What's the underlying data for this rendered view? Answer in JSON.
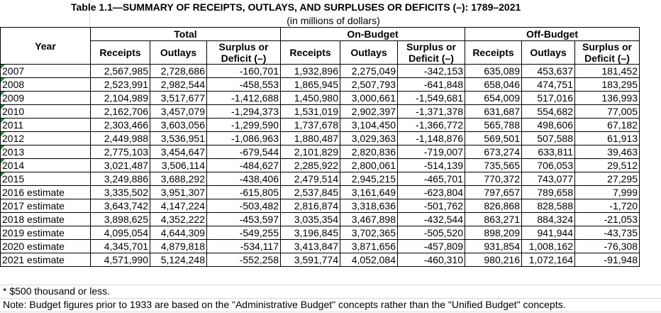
{
  "title": "Table 1.1—SUMMARY OF RECEIPTS, OUTLAYS, AND SURPLUSES OR DEFICITS (–): 1789–2021",
  "subtitle": "(in millions of dollars)",
  "headers": {
    "year": "Year",
    "total": "Total",
    "on_budget": "On-Budget",
    "off_budget": "Off-Budget",
    "receipts": "Receipts",
    "outlays": "Outlays",
    "surplus": "Surplus or Deficit (–)"
  },
  "rows": [
    {
      "year": "2007",
      "flag": true,
      "t_rec": "2,567,985",
      "t_out": "2,728,686",
      "t_sur": "-160,701",
      "on_rec": "1,932,896",
      "on_out": "2,275,049",
      "on_sur": "-342,153",
      "off_rec": "635,089",
      "off_out": "453,637",
      "off_sur": "181,452"
    },
    {
      "year": "2008",
      "flag": true,
      "t_rec": "2,523,991",
      "t_out": "2,982,544",
      "t_sur": "-458,553",
      "on_rec": "1,865,945",
      "on_out": "2,507,793",
      "on_sur": "-641,848",
      "off_rec": "658,046",
      "off_out": "474,751",
      "off_sur": "183,295"
    },
    {
      "year": "2009",
      "flag": true,
      "t_rec": "2,104,989",
      "t_out": "3,517,677",
      "t_sur": "-1,412,688",
      "on_rec": "1,450,980",
      "on_out": "3,000,661",
      "on_sur": "-1,549,681",
      "off_rec": "654,009",
      "off_out": "517,016",
      "off_sur": "136,993"
    },
    {
      "year": "2010",
      "flag": true,
      "t_rec": "2,162,706",
      "t_out": "3,457,079",
      "t_sur": "-1,294,373",
      "on_rec": "1,531,019",
      "on_out": "2,902,397",
      "on_sur": "-1,371,378",
      "off_rec": "631,687",
      "off_out": "554,682",
      "off_sur": "77,005"
    },
    {
      "year": "2011",
      "flag": true,
      "t_rec": "2,303,466",
      "t_out": "3,603,056",
      "t_sur": "-1,299,590",
      "on_rec": "1,737,678",
      "on_out": "3,104,450",
      "on_sur": "-1,366,772",
      "off_rec": "565,788",
      "off_out": "498,606",
      "off_sur": "67,182"
    },
    {
      "year": "2012",
      "flag": true,
      "t_rec": "2,449,988",
      "t_out": "3,536,951",
      "t_sur": "-1,086,963",
      "on_rec": "1,880,487",
      "on_out": "3,029,363",
      "on_sur": "-1,148,876",
      "off_rec": "569,501",
      "off_out": "507,588",
      "off_sur": "61,913"
    },
    {
      "year": "2013",
      "flag": true,
      "t_rec": "2,775,103",
      "t_out": "3,454,647",
      "t_sur": "-679,544",
      "on_rec": "2,101,829",
      "on_out": "2,820,836",
      "on_sur": "-719,007",
      "off_rec": "673,274",
      "off_out": "633,811",
      "off_sur": "39,463"
    },
    {
      "year": "2014",
      "flag": true,
      "t_rec": "3,021,487",
      "t_out": "3,506,114",
      "t_sur": "-484,627",
      "on_rec": "2,285,922",
      "on_out": "2,800,061",
      "on_sur": "-514,139",
      "off_rec": "735,565",
      "off_out": "706,053",
      "off_sur": "29,512"
    },
    {
      "year": "2015",
      "flag": true,
      "t_rec": "3,249,886",
      "t_out": "3,688,292",
      "t_sur": "-438,406",
      "on_rec": "2,479,514",
      "on_out": "2,945,215",
      "on_sur": "-465,701",
      "off_rec": "770,372",
      "off_out": "743,077",
      "off_sur": "27,295"
    },
    {
      "year": "2016 estimate",
      "flag": false,
      "t_rec": "3,335,502",
      "t_out": "3,951,307",
      "t_sur": "-615,805",
      "on_rec": "2,537,845",
      "on_out": "3,161,649",
      "on_sur": "-623,804",
      "off_rec": "797,657",
      "off_out": "789,658",
      "off_sur": "7,999"
    },
    {
      "year": "2017 estimate",
      "flag": false,
      "t_rec": "3,643,742",
      "t_out": "4,147,224",
      "t_sur": "-503,482",
      "on_rec": "2,816,874",
      "on_out": "3,318,636",
      "on_sur": "-501,762",
      "off_rec": "826,868",
      "off_out": "828,588",
      "off_sur": "-1,720"
    },
    {
      "year": "2018 estimate",
      "flag": false,
      "t_rec": "3,898,625",
      "t_out": "4,352,222",
      "t_sur": "-453,597",
      "on_rec": "3,035,354",
      "on_out": "3,467,898",
      "on_sur": "-432,544",
      "off_rec": "863,271",
      "off_out": "884,324",
      "off_sur": "-21,053"
    },
    {
      "year": "2019 estimate",
      "flag": false,
      "t_rec": "4,095,054",
      "t_out": "4,644,309",
      "t_sur": "-549,255",
      "on_rec": "3,196,845",
      "on_out": "3,702,365",
      "on_sur": "-505,520",
      "off_rec": "898,209",
      "off_out": "941,944",
      "off_sur": "-43,735"
    },
    {
      "year": "2020 estimate",
      "flag": false,
      "t_rec": "4,345,701",
      "t_out": "4,879,818",
      "t_sur": "-534,117",
      "on_rec": "3,413,847",
      "on_out": "3,871,656",
      "on_sur": "-457,809",
      "off_rec": "931,854",
      "off_out": "1,008,162",
      "off_sur": "-76,308"
    },
    {
      "year": "2021 estimate",
      "flag": false,
      "t_rec": "4,571,990",
      "t_out": "5,124,248",
      "t_sur": "-552,258",
      "on_rec": "3,591,774",
      "on_out": "4,052,084",
      "on_sur": "-460,310",
      "off_rec": "980,216",
      "off_out": "1,072,164",
      "off_sur": "-91,948"
    }
  ],
  "footnotes": {
    "asterisk": "* $500 thousand or less.",
    "note": "Note: Budget figures prior to 1933 are based on the \"Administrative Budget\" concepts rather than the \"Unified Budget\" concepts."
  },
  "colors": {
    "flag_triangle": "#1e8c3a",
    "grid_line": "#d9d9d9"
  }
}
